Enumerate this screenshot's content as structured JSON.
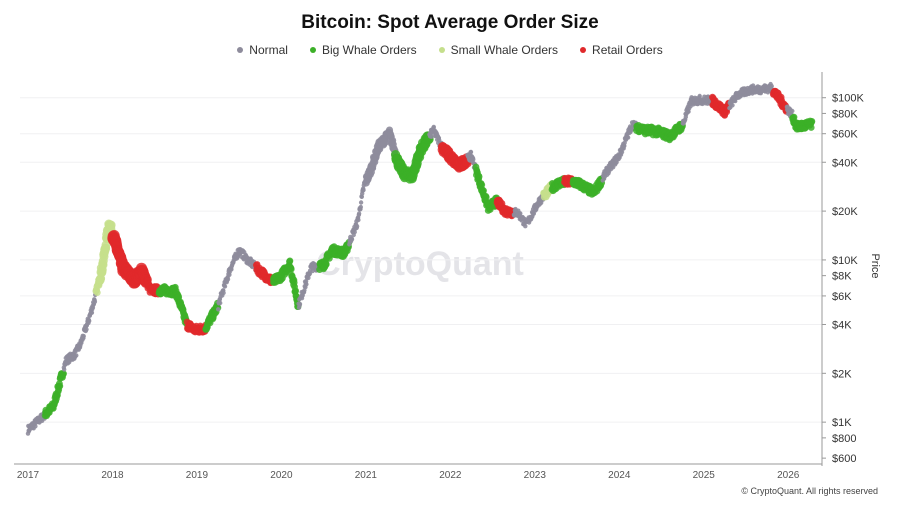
{
  "chart_data": {
    "type": "scatter",
    "title": "Bitcoin: Spot Average Order Size",
    "ylabel": "Price",
    "xlabel": "",
    "yscale": "log",
    "ylim": [
      560,
      140000
    ],
    "xlim": [
      2017.0,
      2026.4
    ],
    "x_ticks": [
      {
        "value": 2017,
        "label": "2017"
      },
      {
        "value": 2018,
        "label": "2018"
      },
      {
        "value": 2019,
        "label": "2019"
      },
      {
        "value": 2020,
        "label": "2020"
      },
      {
        "value": 2021,
        "label": "2021"
      },
      {
        "value": 2022,
        "label": "2022"
      },
      {
        "value": 2023,
        "label": "2023"
      },
      {
        "value": 2024,
        "label": "2024"
      },
      {
        "value": 2025,
        "label": "2025"
      },
      {
        "value": 2026,
        "label": "2026"
      }
    ],
    "y_ticks": [
      {
        "value": 100000,
        "label": "$100K"
      },
      {
        "value": 80000,
        "label": "$80K"
      },
      {
        "value": 60000,
        "label": "$60K"
      },
      {
        "value": 40000,
        "label": "$40K"
      },
      {
        "value": 20000,
        "label": "$20K"
      },
      {
        "value": 10000,
        "label": "$10K"
      },
      {
        "value": 8000,
        "label": "$8K"
      },
      {
        "value": 6000,
        "label": "$6K"
      },
      {
        "value": 4000,
        "label": "$4K"
      },
      {
        "value": 2000,
        "label": "$2K"
      },
      {
        "value": 1000,
        "label": "$1K"
      },
      {
        "value": 800,
        "label": "$800"
      },
      {
        "value": 600,
        "label": "$600"
      }
    ],
    "legend": [
      {
        "name": "Normal",
        "color": "#8e8c9c"
      },
      {
        "name": "Big Whale Orders",
        "color": "#3cb028"
      },
      {
        "name": "Small Whale Orders",
        "color": "#c5df8c"
      },
      {
        "name": "Retail Orders",
        "color": "#e0292b"
      }
    ],
    "price_path": [
      [
        2017.0,
        900
      ],
      [
        2017.15,
        1050
      ],
      [
        2017.3,
        1250
      ],
      [
        2017.45,
        2400
      ],
      [
        2017.55,
        2600
      ],
      [
        2017.62,
        3000
      ],
      [
        2017.72,
        4300
      ],
      [
        2017.8,
        6000
      ],
      [
        2017.88,
        9000
      ],
      [
        2017.96,
        17000
      ],
      [
        2018.05,
        12000
      ],
      [
        2018.12,
        9000
      ],
      [
        2018.25,
        7500
      ],
      [
        2018.35,
        8500
      ],
      [
        2018.45,
        6500
      ],
      [
        2018.6,
        6500
      ],
      [
        2018.75,
        6400
      ],
      [
        2018.88,
        4000
      ],
      [
        2018.98,
        3700
      ],
      [
        2019.1,
        3800
      ],
      [
        2019.25,
        5200
      ],
      [
        2019.4,
        9000
      ],
      [
        2019.5,
        11500
      ],
      [
        2019.6,
        10000
      ],
      [
        2019.75,
        8500
      ],
      [
        2019.9,
        7300
      ],
      [
        2020.0,
        8000
      ],
      [
        2020.1,
        9500
      ],
      [
        2020.2,
        5200
      ],
      [
        2020.35,
        9000
      ],
      [
        2020.5,
        9300
      ],
      [
        2020.6,
        11500
      ],
      [
        2020.75,
        11000
      ],
      [
        2020.9,
        17000
      ],
      [
        2020.98,
        29000
      ],
      [
        2021.05,
        35000
      ],
      [
        2021.15,
        50000
      ],
      [
        2021.28,
        60000
      ],
      [
        2021.38,
        40000
      ],
      [
        2021.45,
        34000
      ],
      [
        2021.55,
        33000
      ],
      [
        2021.65,
        48000
      ],
      [
        2021.8,
        63000
      ],
      [
        2021.9,
        50000
      ],
      [
        2022.0,
        43000
      ],
      [
        2022.1,
        38000
      ],
      [
        2022.25,
        44000
      ],
      [
        2022.35,
        30000
      ],
      [
        2022.45,
        21000
      ],
      [
        2022.55,
        23000
      ],
      [
        2022.65,
        20000
      ],
      [
        2022.8,
        19500
      ],
      [
        2022.9,
        16500
      ],
      [
        2023.05,
        23000
      ],
      [
        2023.2,
        28000
      ],
      [
        2023.3,
        30000
      ],
      [
        2023.45,
        30500
      ],
      [
        2023.55,
        29000
      ],
      [
        2023.7,
        26000
      ],
      [
        2023.85,
        35000
      ],
      [
        2024.0,
        44000
      ],
      [
        2024.15,
        68000
      ],
      [
        2024.3,
        63000
      ],
      [
        2024.45,
        62000
      ],
      [
        2024.6,
        58000
      ],
      [
        2024.75,
        68000
      ],
      [
        2024.85,
        95000
      ],
      [
        2024.95,
        97000
      ],
      [
        2025.1,
        96000
      ],
      [
        2025.25,
        82000
      ],
      [
        2025.4,
        104000
      ],
      [
        2025.55,
        112000
      ],
      [
        2025.7,
        113000
      ],
      [
        2025.8,
        115000
      ],
      [
        2025.95,
        90000
      ],
      [
        2026.05,
        78000
      ],
      [
        2026.1,
        66000
      ],
      [
        2026.25,
        68000
      ]
    ],
    "highlighted_ranges": [
      {
        "category": "Big Whale Orders",
        "x_from": 2017.2,
        "x_to": 2017.42
      },
      {
        "category": "Small Whale Orders",
        "x_from": 2017.8,
        "x_to": 2018.05
      },
      {
        "category": "Retail Orders",
        "x_from": 2018.0,
        "x_to": 2018.55
      },
      {
        "category": "Big Whale Orders",
        "x_from": 2018.55,
        "x_to": 2018.9
      },
      {
        "category": "Retail Orders",
        "x_from": 2018.88,
        "x_to": 2019.1
      },
      {
        "category": "Big Whale Orders",
        "x_from": 2019.1,
        "x_to": 2019.25
      },
      {
        "category": "Retail Orders",
        "x_from": 2019.7,
        "x_to": 2019.9
      },
      {
        "category": "Big Whale Orders",
        "x_from": 2019.9,
        "x_to": 2020.2
      },
      {
        "category": "Big Whale Orders",
        "x_from": 2020.45,
        "x_to": 2020.8
      },
      {
        "category": "Big Whale Orders",
        "x_from": 2021.35,
        "x_to": 2021.75
      },
      {
        "category": "Retail Orders",
        "x_from": 2021.9,
        "x_to": 2022.2
      },
      {
        "category": "Big Whale Orders",
        "x_from": 2022.3,
        "x_to": 2022.55
      },
      {
        "category": "Retail Orders",
        "x_from": 2022.55,
        "x_to": 2022.75
      },
      {
        "category": "Small Whale Orders",
        "x_from": 2023.1,
        "x_to": 2023.2
      },
      {
        "category": "Big Whale Orders",
        "x_from": 2023.2,
        "x_to": 2023.4
      },
      {
        "category": "Retail Orders",
        "x_from": 2023.35,
        "x_to": 2023.45
      },
      {
        "category": "Big Whale Orders",
        "x_from": 2023.45,
        "x_to": 2023.8
      },
      {
        "category": "Big Whale Orders",
        "x_from": 2024.2,
        "x_to": 2024.75
      },
      {
        "category": "Retail Orders",
        "x_from": 2025.1,
        "x_to": 2025.3
      },
      {
        "category": "Retail Orders",
        "x_from": 2025.82,
        "x_to": 2025.98
      },
      {
        "category": "Big Whale Orders",
        "x_from": 2026.05,
        "x_to": 2026.3
      }
    ]
  },
  "watermark": "CryptoQuant",
  "copyright": "© CryptoQuant. All rights reserved"
}
